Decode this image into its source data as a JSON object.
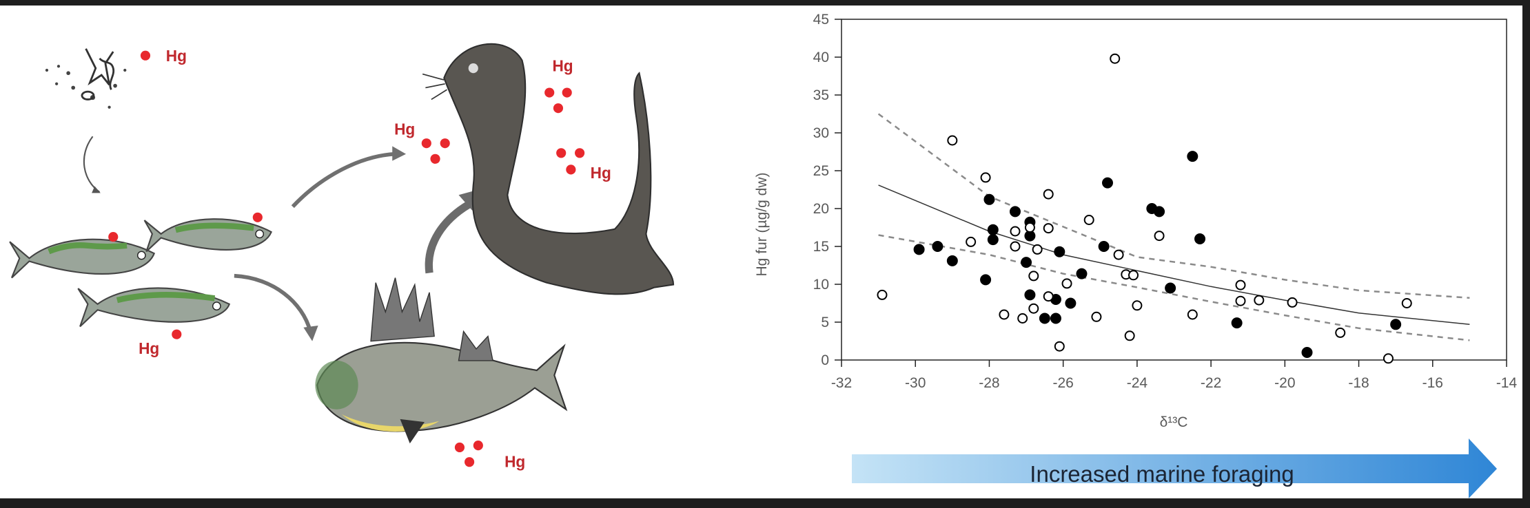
{
  "illustration": {
    "hg_labels": [
      "Hg",
      "Hg",
      "Hg",
      "Hg",
      "Hg",
      "Hg"
    ],
    "colors": {
      "mercury": "#e8282d",
      "otter": "#55524d",
      "fish_green": "#5e9a4a",
      "arrow": "#707070"
    }
  },
  "arrow": {
    "label": "Increased marine foraging",
    "color_start": "#bfe0f5",
    "color_end": "#2f86d6"
  },
  "chart_data": {
    "type": "scatter",
    "xlabel": "δ¹³C",
    "ylabel": "Hg fur (µg/g dw)",
    "xlim": [
      -32,
      -14
    ],
    "ylim": [
      0,
      45
    ],
    "xticks": [
      "-32",
      "-30",
      "-28",
      "-26",
      "-24",
      "-22",
      "-20",
      "-18",
      "-16",
      "-14"
    ],
    "yticks": [
      "0",
      "5",
      "10",
      "15",
      "20",
      "25",
      "30",
      "35",
      "40",
      "45"
    ],
    "grid": false,
    "series": [
      {
        "name": "filled",
        "marker": "filled-circle",
        "points": [
          [
            -24.8,
            23.4
          ],
          [
            -28.0,
            21.2
          ],
          [
            -27.3,
            19.6
          ],
          [
            -26.9,
            18.2
          ],
          [
            -27.9,
            17.2
          ],
          [
            -26.9,
            16.4
          ],
          [
            -27.9,
            15.9
          ],
          [
            -24.9,
            15.0
          ],
          [
            -29.4,
            15.0
          ],
          [
            -29.9,
            14.6
          ],
          [
            -26.1,
            14.3
          ],
          [
            -29.0,
            13.1
          ],
          [
            -27.0,
            12.9
          ],
          [
            -25.5,
            11.4
          ],
          [
            -28.1,
            10.6
          ],
          [
            -26.9,
            8.6
          ],
          [
            -26.2,
            8.0
          ],
          [
            -25.8,
            7.5
          ],
          [
            -26.5,
            5.5
          ],
          [
            -26.2,
            5.5
          ],
          [
            -22.5,
            26.9
          ],
          [
            -23.6,
            20.0
          ],
          [
            -23.4,
            19.6
          ],
          [
            -22.3,
            16.0
          ],
          [
            -23.1,
            9.5
          ],
          [
            -21.3,
            4.9
          ],
          [
            -17.0,
            4.7
          ],
          [
            -19.4,
            1.0
          ]
        ]
      },
      {
        "name": "open",
        "marker": "open-circle",
        "points": [
          [
            -24.6,
            39.8
          ],
          [
            -29.0,
            29.0
          ],
          [
            -28.1,
            24.1
          ],
          [
            -26.4,
            21.9
          ],
          [
            -25.3,
            18.5
          ],
          [
            -26.9,
            17.5
          ],
          [
            -26.4,
            17.4
          ],
          [
            -27.3,
            17.0
          ],
          [
            -28.5,
            15.6
          ],
          [
            -27.3,
            15.0
          ],
          [
            -26.7,
            14.6
          ],
          [
            -24.5,
            13.9
          ],
          [
            -26.8,
            11.1
          ],
          [
            -24.3,
            11.3
          ],
          [
            -24.1,
            11.2
          ],
          [
            -25.9,
            10.1
          ],
          [
            -30.9,
            8.6
          ],
          [
            -26.4,
            8.4
          ],
          [
            -24.0,
            7.2
          ],
          [
            -26.8,
            6.8
          ],
          [
            -27.6,
            6.0
          ],
          [
            -25.1,
            5.7
          ],
          [
            -27.1,
            5.5
          ],
          [
            -24.2,
            3.2
          ],
          [
            -26.1,
            1.8
          ],
          [
            -23.4,
            16.4
          ],
          [
            -21.2,
            9.9
          ],
          [
            -21.2,
            7.8
          ],
          [
            -20.7,
            7.9
          ],
          [
            -19.8,
            7.6
          ],
          [
            -16.7,
            7.5
          ],
          [
            -22.5,
            6.0
          ],
          [
            -18.5,
            3.6
          ],
          [
            -17.2,
            0.2
          ]
        ]
      }
    ],
    "fit": {
      "x": [
        -31,
        -28,
        -26,
        -24,
        -22,
        -20,
        -18,
        -15
      ],
      "y": [
        23.1,
        17.0,
        13.9,
        11.8,
        9.7,
        7.9,
        6.2,
        4.7
      ]
    },
    "ci_upper": {
      "x": [
        -31,
        -28,
        -26,
        -24,
        -22,
        -20,
        -18,
        -15
      ],
      "y": [
        32.5,
        21.6,
        17.6,
        13.6,
        12.3,
        10.6,
        9.2,
        8.2
      ]
    },
    "ci_lower": {
      "x": [
        -31,
        -28,
        -26,
        -24,
        -22,
        -20,
        -18,
        -15
      ],
      "y": [
        16.5,
        13.9,
        11.4,
        9.6,
        7.7,
        5.9,
        4.2,
        2.6
      ]
    }
  }
}
